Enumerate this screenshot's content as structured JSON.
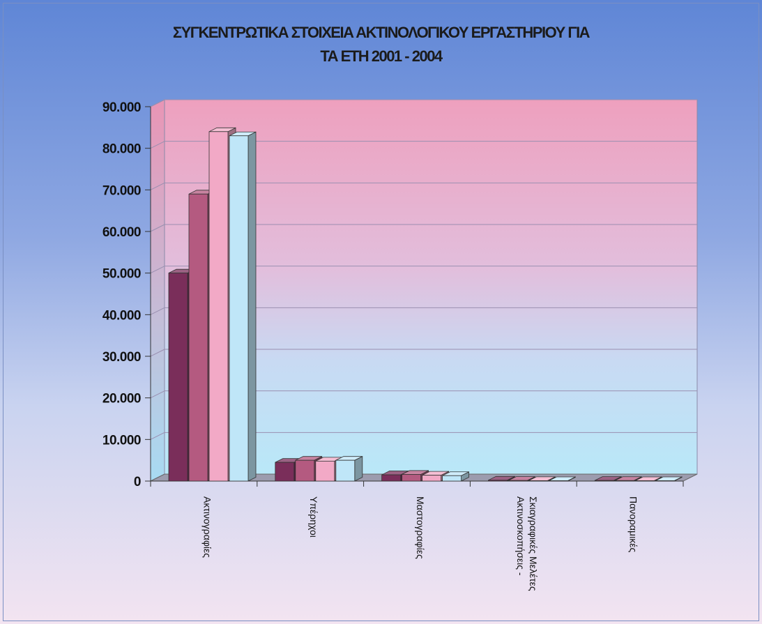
{
  "chart_data": {
    "type": "bar",
    "title": "ΣΥΓΚΕΝΤΡΩΤΙΚΑ ΣΤΟΙΧΕΙΑ ΑΚΤΙΝΟΛΟΓΙΚΟΥ ΕΡΓΑΣΤΗΡΙΟΥ ΓΙΑ ΤΑ ΕΤΗ 2001 - 2004",
    "title_lines": [
      "ΣΥΓΚΕΝΤΡΩΤΙΚΑ ΣΤΟΙΧΕΙΑ ΑΚΤΙΝΟΛΟΓΙΚΟΥ ΕΡΓΑΣΤΗΡΙΟΥ ΓΙΑ",
      "ΤΑ ΕΤΗ 2001 - 2004"
    ],
    "categories": [
      [
        "Ακτινογραφίες"
      ],
      [
        "Υπέρηχοι"
      ],
      [
        "Μαστογραφίες"
      ],
      [
        "Ακτινοσκοπήσεις -",
        "Σκιαγραφικές Μελέτες"
      ],
      [
        "Πανοραμικές"
      ]
    ],
    "series": [
      {
        "values": [
          50000,
          4500,
          1500,
          200,
          150
        ],
        "color": "#7a2e5a"
      },
      {
        "values": [
          69000,
          5000,
          1600,
          150,
          120
        ],
        "color": "#b45a80"
      },
      {
        "values": [
          84000,
          4800,
          1400,
          100,
          90
        ],
        "color": "#f2a9c6"
      },
      {
        "values": [
          83000,
          5000,
          1300,
          80,
          80
        ],
        "color": "#bfe6f8"
      }
    ],
    "yticks": [
      "0",
      "10.000",
      "20.000",
      "30.000",
      "40.000",
      "50.000",
      "60.000",
      "70.000",
      "80.000",
      "90.000"
    ],
    "ylim": [
      0,
      90000
    ],
    "grid": true,
    "legend": "none"
  }
}
